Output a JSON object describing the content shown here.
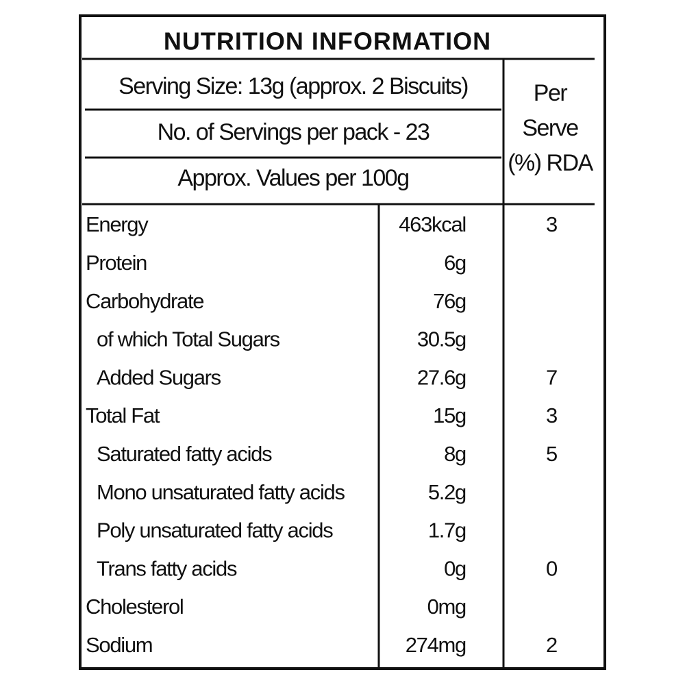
{
  "title": "NUTRITION INFORMATION",
  "serving_size": "Serving Size: 13g (approx. 2 Biscuits)",
  "servings_per_pack": "No. of Servings per pack - 23",
  "values_basis": "Approx. Values per 100g",
  "rda_header": [
    "Per",
    "Serve",
    "(%) RDA"
  ],
  "rows": [
    {
      "nutrient": "Energy",
      "value": "463kcal",
      "rda": 3
    },
    {
      "nutrient": "Protein",
      "value": "6g"
    },
    {
      "nutrient": "Carbohydrate",
      "value": "76g"
    },
    {
      "nutrient": "of which Total Sugars",
      "value": "30.5g"
    },
    {
      "nutrient": "Added Sugars",
      "value": "27.6g",
      "rda": 7
    },
    {
      "nutrient": "Total Fat",
      "value": "15g",
      "rda": 3
    },
    {
      "nutrient": "Saturated fatty acids",
      "value": "8g",
      "rda": 5
    },
    {
      "nutrient": "Mono unsaturated fatty acids",
      "value": "5.2g"
    },
    {
      "nutrient": "Poly unsaturated fatty acids",
      "value": "1.7g"
    },
    {
      "nutrient": "Trans fatty acids",
      "value": "0g",
      "rda": 0
    },
    {
      "nutrient": "Cholesterol",
      "value": "0mg"
    },
    {
      "nutrient": "Sodium",
      "value": "274mg",
      "rda": 2
    }
  ]
}
